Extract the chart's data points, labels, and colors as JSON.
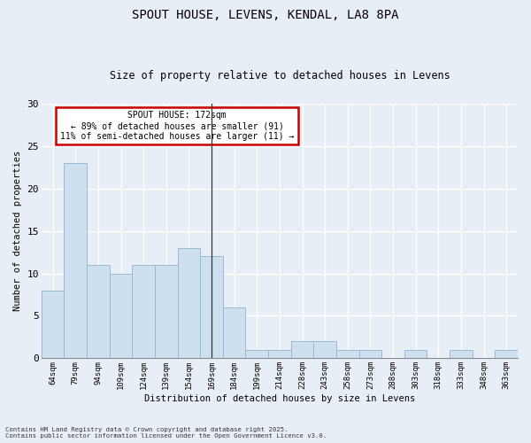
{
  "title": "SPOUT HOUSE, LEVENS, KENDAL, LA8 8PA",
  "subtitle": "Size of property relative to detached houses in Levens",
  "xlabel": "Distribution of detached houses by size in Levens",
  "ylabel": "Number of detached properties",
  "categories": [
    "64sqm",
    "79sqm",
    "94sqm",
    "109sqm",
    "124sqm",
    "139sqm",
    "154sqm",
    "169sqm",
    "184sqm",
    "199sqm",
    "214sqm",
    "228sqm",
    "243sqm",
    "258sqm",
    "273sqm",
    "288sqm",
    "303sqm",
    "318sqm",
    "333sqm",
    "348sqm",
    "363sqm"
  ],
  "values": [
    8,
    23,
    11,
    10,
    11,
    11,
    13,
    12,
    6,
    1,
    1,
    2,
    2,
    1,
    1,
    0,
    1,
    0,
    1,
    0,
    1
  ],
  "bar_color": "#cde0f0",
  "bar_edge_color": "#9ab8d0",
  "bg_color": "#e8eef5",
  "plot_bg_color": "#e8eef5",
  "grid_color": "#ffffff",
  "vline_x_index": 7,
  "vline_color": "#333333",
  "annotation_text_line1": "SPOUT HOUSE: 172sqm",
  "annotation_text_line2": "← 89% of detached houses are smaller (91)",
  "annotation_text_line3": "11% of semi-detached houses are larger (11) →",
  "annotation_box_facecolor": "#ffffff",
  "annotation_box_edgecolor": "#cc0000",
  "footer_line1": "Contains HM Land Registry data © Crown copyright and database right 2025.",
  "footer_line2": "Contains public sector information licensed under the Open Government Licence v3.0.",
  "ylim": [
    0,
    30
  ],
  "yticks": [
    0,
    5,
    10,
    15,
    20,
    25,
    30
  ]
}
